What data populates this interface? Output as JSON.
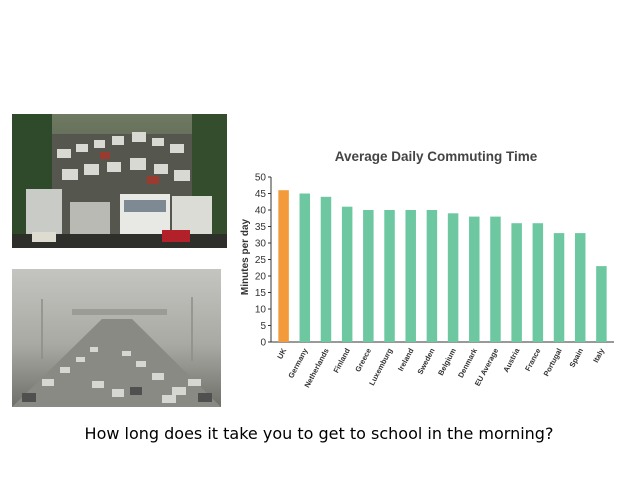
{
  "caption": "How long does it take you to get to school in the morning?",
  "photos": [
    {
      "name": "traffic-jam-photo"
    },
    {
      "name": "smoggy-highway-photo"
    }
  ],
  "chart_data": {
    "type": "bar",
    "title": "Average Daily Commuting Time",
    "xlabel": "",
    "ylabel": "Minutes per day",
    "ylim": [
      0,
      50
    ],
    "yticks": [
      0,
      5,
      10,
      15,
      20,
      25,
      30,
      35,
      40,
      45,
      50
    ],
    "categories": [
      "UK",
      "Germany",
      "Netherlands",
      "Finland",
      "Greece",
      "Luxemburg",
      "Ireland",
      "Sweden",
      "Belgium",
      "Denmark",
      "EU Average",
      "Austria",
      "France",
      "Portugal",
      "Spain",
      "Italy"
    ],
    "values": [
      46,
      45,
      44,
      41,
      40,
      40,
      40,
      40,
      39,
      38,
      38,
      36,
      36,
      33,
      33,
      23
    ],
    "bar_colors": {
      "highlight": "#f39a3a",
      "default": "#6dc8a2"
    },
    "highlight_index": 0,
    "grid": false,
    "legend": "none"
  }
}
